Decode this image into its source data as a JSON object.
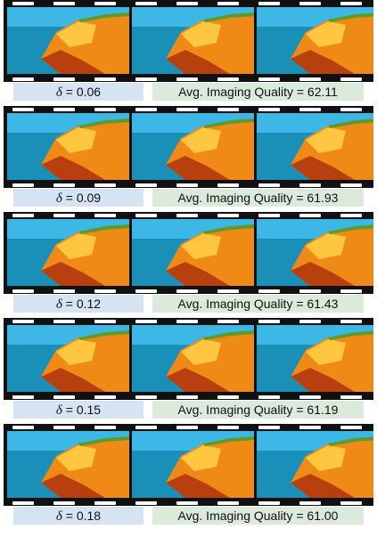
{
  "delta_symbol": "δ",
  "rows": [
    {
      "delta_label": "= 0.06",
      "quality_label": "Avg. Imaging Quality = 62.11"
    },
    {
      "delta_label": "= 0.09",
      "quality_label": "Avg. Imaging Quality = 61.93"
    },
    {
      "delta_label": "= 0.12",
      "quality_label": "Avg. Imaging Quality = 61.43"
    },
    {
      "delta_label": "= 0.15",
      "quality_label": "Avg. Imaging Quality = 61.19"
    },
    {
      "delta_label": "= 0.18",
      "quality_label": "Avg. Imaging Quality = 61.00"
    }
  ],
  "frame_colors": {
    "sky": "#3db7e6",
    "sea": "#1a8fb8",
    "cliff": "#f08a16",
    "cliff_light": "#ffc640",
    "cliff_dark": "#b8400f",
    "grass": "#5c9a2a"
  }
}
